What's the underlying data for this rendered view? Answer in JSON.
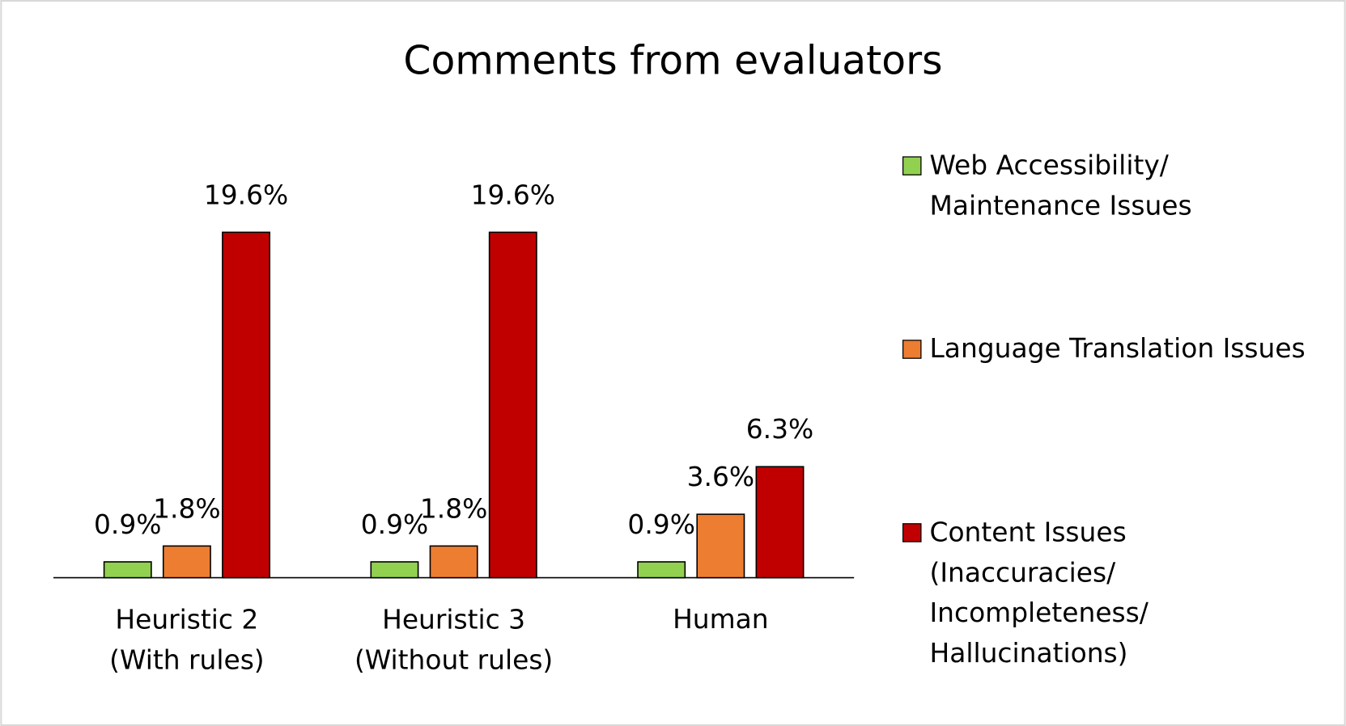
{
  "chart_data": {
    "type": "bar",
    "title": "Comments from evaluators",
    "categories": [
      "Heuristic 2\n(With rules)",
      "Heuristic 3\n(Without rules)",
      "Human"
    ],
    "series": [
      {
        "name": "Web Accessibility/\nMaintenance Issues",
        "color": "#92d050",
        "values": [
          0.9,
          0.9,
          0.9
        ],
        "value_labels": [
          "0.9%",
          "0.9%",
          "0.9%"
        ]
      },
      {
        "name": "Language Translation Issues",
        "color": "#ed7d31",
        "values": [
          1.8,
          1.8,
          3.6
        ],
        "value_labels": [
          "1.8%",
          "1.8%",
          "3.6%"
        ]
      },
      {
        "name": "Content Issues\n(Inaccuracies/\nIncompleteness/\nHallucinations)",
        "color": "#c00000",
        "values": [
          19.6,
          19.6,
          6.3
        ],
        "value_labels": [
          "19.6%",
          "19.6%",
          "6.3%"
        ]
      }
    ],
    "legend": "right"
  }
}
